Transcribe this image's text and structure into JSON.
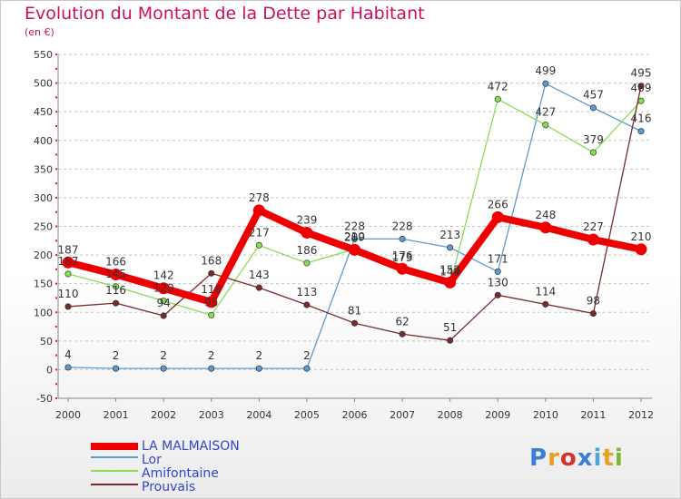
{
  "header": {
    "title": "Evolution du Montant de la Dette par Habitant",
    "unit": "(en €)"
  },
  "logo": {
    "text": "Proxiti",
    "letter_colors": [
      "#3a7fd5",
      "#e8a020",
      "#d0342c",
      "#3a7fd5",
      "#4aa8d8",
      "#e8a020",
      "#7ab830"
    ]
  },
  "chart_data": {
    "type": "line",
    "title": "Evolution du Montant de la Dette par Habitant",
    "ylabel": "(en €)",
    "xlabel": "",
    "x": [
      "2000",
      "2001",
      "2002",
      "2003",
      "2004",
      "2005",
      "2006",
      "2007",
      "2008",
      "2009",
      "2010",
      "2011",
      "2012"
    ],
    "ylim": [
      -50,
      550
    ],
    "yticks": [
      "-50",
      "0",
      "50",
      "100",
      "150",
      "200",
      "250",
      "300",
      "350",
      "400",
      "450",
      "500",
      "550"
    ],
    "grid": "horizontal-dashed",
    "legend_position": "bottom-left",
    "series": [
      {
        "name": "LA MALMAISON",
        "color": "#ee0000",
        "values": [
          187,
          166,
          142,
          118,
          278,
          239,
          209,
          176,
          152,
          266,
          248,
          227,
          210
        ],
        "labels": [
          "187",
          "166",
          "142",
          "118",
          "278",
          "239",
          "209",
          "176",
          "152",
          "266",
          "248",
          "227",
          "210"
        ]
      },
      {
        "name": "Lor",
        "color": "#5b9bd0",
        "values": [
          4,
          2,
          2,
          2,
          2,
          2,
          228,
          228,
          213,
          171,
          499,
          457,
          416
        ],
        "labels": [
          "4",
          "2",
          "2",
          "2",
          "2",
          "2",
          "228",
          "228",
          "213",
          "171",
          "499",
          "457",
          "416"
        ]
      },
      {
        "name": "Amifontaine",
        "color": "#88dd55",
        "values": [
          167,
          145,
          120,
          95,
          217,
          186,
          210,
          173,
          149,
          472,
          427,
          379,
          469
        ],
        "labels": [
          "167",
          "145",
          "120",
          "95",
          "217",
          "186",
          "210",
          "173",
          "149",
          "472",
          "427",
          "379",
          "469"
        ]
      },
      {
        "name": "Prouvais",
        "color": "#7a2a2a",
        "values": [
          110,
          116,
          94,
          168,
          143,
          113,
          81,
          62,
          51,
          130,
          114,
          98,
          495
        ],
        "labels": [
          "110",
          "116",
          "94",
          "168",
          "143",
          "113",
          "81",
          "62",
          "51",
          "130",
          "114",
          "98",
          "495"
        ]
      }
    ]
  }
}
